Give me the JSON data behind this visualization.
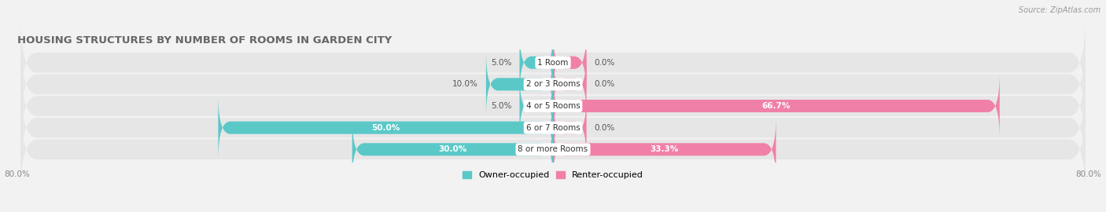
{
  "title": "HOUSING STRUCTURES BY NUMBER OF ROOMS IN GARDEN CITY",
  "source": "Source: ZipAtlas.com",
  "categories": [
    "1 Room",
    "2 or 3 Rooms",
    "4 or 5 Rooms",
    "6 or 7 Rooms",
    "8 or more Rooms"
  ],
  "owner_values": [
    5.0,
    10.0,
    5.0,
    50.0,
    30.0
  ],
  "renter_values": [
    0.0,
    0.0,
    66.7,
    0.0,
    33.3
  ],
  "owner_color": "#5bc8c8",
  "renter_color": "#f080a8",
  "background_color": "#f2f2f2",
  "row_bg_color": "#e6e6e6",
  "xlim_left": -80.0,
  "xlim_right": 80.0,
  "bar_height": 0.58,
  "title_fontsize": 9.5,
  "label_fontsize": 7.5,
  "tick_fontsize": 7.5,
  "legend_fontsize": 8,
  "small_bar_stub": 5.0
}
